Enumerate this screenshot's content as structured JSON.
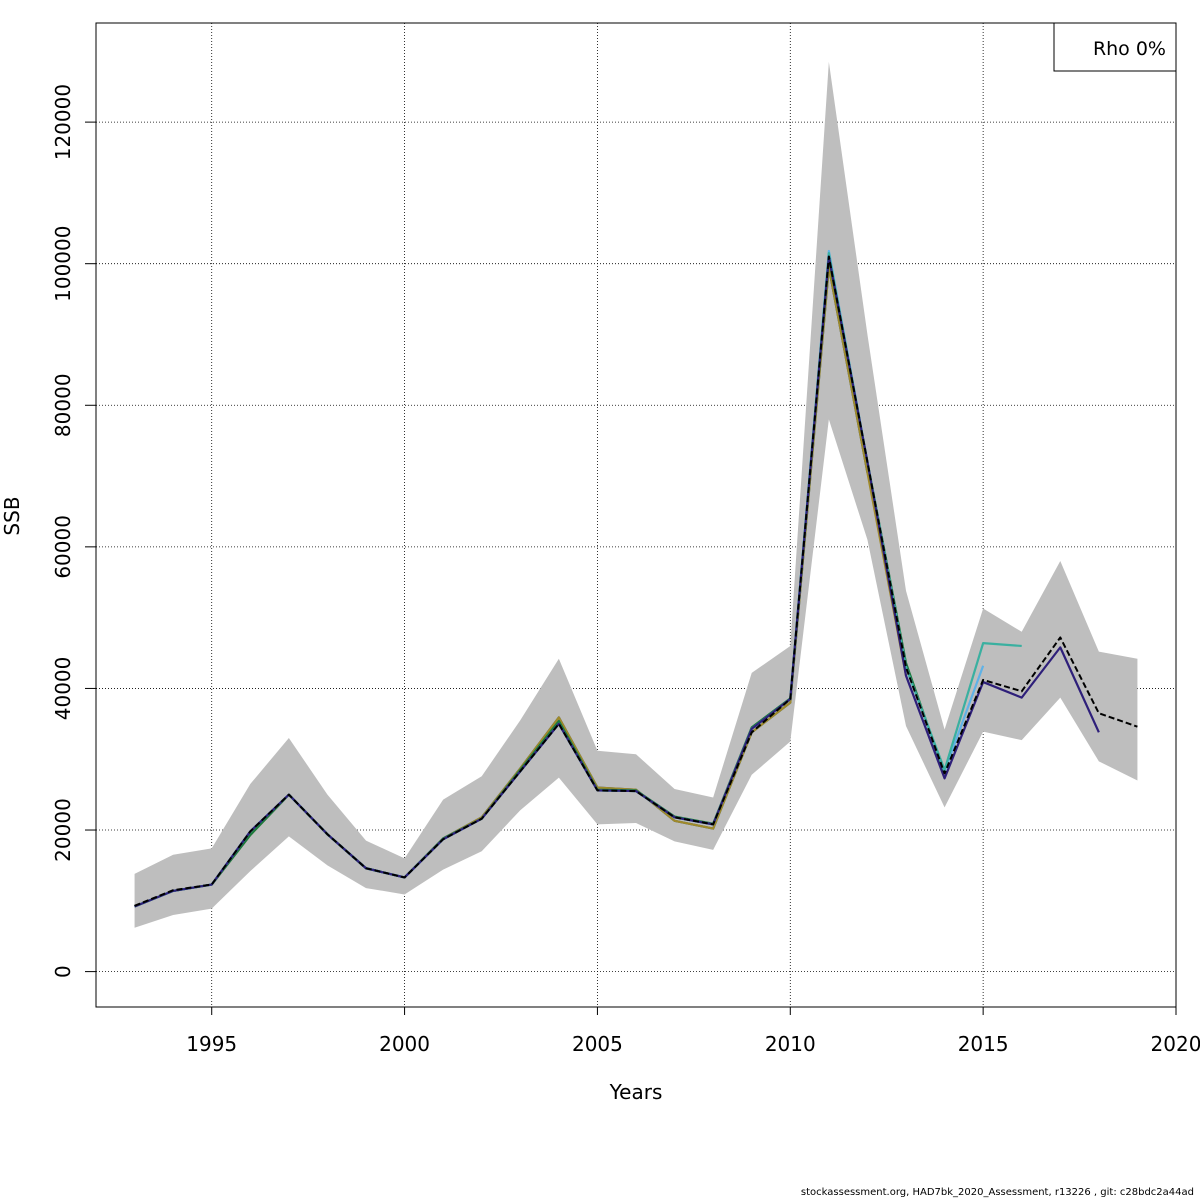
{
  "chart_data": {
    "type": "line",
    "xlabel": "Years",
    "ylabel": "SSB",
    "xlim": [
      1992,
      2020
    ],
    "ylim": [
      -5000,
      134000
    ],
    "x_ticks": [
      1995,
      2000,
      2005,
      2010,
      2015,
      2020
    ],
    "y_ticks": [
      0,
      20000,
      40000,
      60000,
      80000,
      100000,
      120000
    ],
    "grid": true,
    "legend": {
      "position": "top-right",
      "text": "Rho 0%"
    },
    "colors": {
      "band": "#bebebe",
      "series": [
        "#000000",
        "#2e1f7a",
        "#3ab0a0",
        "#5fb2e6",
        "#1b7a3c",
        "#a08a2a",
        "#0a4a8a"
      ]
    },
    "confidence_band": {
      "x": [
        1993,
        1994,
        1995,
        1996,
        1997,
        1998,
        1999,
        2000,
        2001,
        2002,
        2003,
        2004,
        2005,
        2006,
        2007,
        2008,
        2009,
        2010,
        2011,
        2012,
        2013,
        2014,
        2015,
        2016,
        2017,
        2018,
        2019
      ],
      "upper": [
        13800,
        16500,
        17400,
        26500,
        33000,
        25000,
        18500,
        16000,
        24300,
        27600,
        35500,
        44200,
        31200,
        30700,
        25800,
        24600,
        42200,
        46000,
        128500,
        90000,
        53800,
        34200,
        51300,
        48000,
        58000,
        45200,
        44200
      ],
      "lower": [
        6200,
        8000,
        8900,
        14200,
        19100,
        15000,
        11800,
        10900,
        14400,
        17000,
        22800,
        27400,
        20800,
        21000,
        18400,
        17200,
        27800,
        32500,
        78000,
        61000,
        34700,
        23200,
        33900,
        32700,
        38700,
        29700,
        27000
      ]
    },
    "series": [
      {
        "x": [
          1993,
          1994,
          1995,
          1996,
          1997,
          1998,
          1999,
          2000,
          2001,
          2002,
          2003,
          2004,
          2005,
          2006,
          2007,
          2008,
          2009,
          2010,
          2011,
          2012,
          2013,
          2014,
          2015,
          2016,
          2017,
          2018,
          2019
        ],
        "values": [
          9300,
          11500,
          12300,
          19800,
          25000,
          19400,
          14600,
          13300,
          18700,
          21600,
          28300,
          35000,
          25600,
          25500,
          21800,
          20800,
          33800,
          38500,
          101000,
          72000,
          43000,
          28000,
          41200,
          39600,
          47200,
          36500,
          34600
        ]
      },
      {
        "x": [
          1993,
          1994,
          1995,
          1996,
          1997,
          1998,
          1999,
          2000,
          2001,
          2002,
          2003,
          2004,
          2005,
          2006,
          2007,
          2008,
          2009,
          2010,
          2011,
          2012,
          2013,
          2014,
          2015,
          2016,
          2017,
          2018
        ],
        "values": [
          9200,
          11400,
          12300,
          19800,
          25000,
          19400,
          14600,
          13300,
          18700,
          21600,
          28300,
          35000,
          25600,
          25500,
          21800,
          20800,
          34300,
          38500,
          101000,
          72000,
          41800,
          27300,
          40900,
          38700,
          45800,
          33800
        ]
      },
      {
        "x": [
          1993,
          1994,
          1995,
          1996,
          1997,
          1998,
          1999,
          2000,
          2001,
          2002,
          2003,
          2004,
          2005,
          2006,
          2007,
          2008,
          2009,
          2010,
          2011,
          2012,
          2013,
          2014,
          2015,
          2016
        ],
        "values": [
          9200,
          11400,
          12300,
          19800,
          25000,
          19400,
          14600,
          13300,
          18700,
          21600,
          28300,
          35000,
          25600,
          25500,
          21800,
          20800,
          34300,
          38500,
          101500,
          72000,
          43000,
          28500,
          46400,
          46000
        ]
      },
      {
        "x": [
          1993,
          1994,
          1995,
          1996,
          1997,
          1998,
          1999,
          2000,
          2001,
          2002,
          2003,
          2004,
          2005,
          2006,
          2007,
          2008,
          2009,
          2010,
          2011,
          2012,
          2013,
          2014,
          2015
        ],
        "values": [
          9200,
          11400,
          12300,
          19800,
          25000,
          19400,
          14600,
          13300,
          18700,
          21600,
          28300,
          35000,
          25600,
          25500,
          21800,
          20800,
          34300,
          38500,
          101800,
          72000,
          43000,
          28300,
          43200
        ]
      },
      {
        "x": [
          1993,
          1994,
          1995,
          1996,
          1997,
          1998,
          1999,
          2000,
          2001,
          2002,
          2003,
          2004,
          2005,
          2006,
          2007,
          2008,
          2009,
          2010,
          2011,
          2012,
          2013,
          2014
        ],
        "values": [
          9200,
          11400,
          12300,
          19300,
          25000,
          19400,
          14600,
          13300,
          18800,
          21600,
          28500,
          35400,
          25700,
          25600,
          21900,
          20900,
          34500,
          38600,
          100800,
          72000,
          43600,
          28000
        ]
      },
      {
        "x": [
          1993,
          1994,
          1995,
          1996,
          1997,
          1998,
          1999,
          2000,
          2001,
          2002,
          2003,
          2004,
          2005,
          2006,
          2007,
          2008,
          2009,
          2010,
          2011,
          2012,
          2013
        ],
        "values": [
          9200,
          11400,
          12300,
          19300,
          25000,
          19400,
          14600,
          13300,
          18800,
          21800,
          28700,
          35900,
          26000,
          25700,
          21300,
          20200,
          33800,
          38000,
          99500,
          70500,
          41800
        ]
      },
      {
        "x": [
          1993,
          1994,
          1995,
          1996,
          1997,
          1998,
          1999,
          2000,
          2001,
          2002,
          2003,
          2004,
          2005,
          2006,
          2007,
          2008,
          2009,
          2010,
          2011,
          2012
        ],
        "values": [
          9200,
          11400,
          12300,
          19300,
          25000,
          19400,
          14600,
          13300,
          18800,
          21800,
          28700,
          35900,
          26000,
          25700,
          21300,
          20200,
          33800,
          38000,
          99500,
          70500
        ]
      }
    ]
  },
  "footer": "stockassessment.org, HAD7bk_2020_Assessment, r13226 , git: c28bdc2a44ad"
}
